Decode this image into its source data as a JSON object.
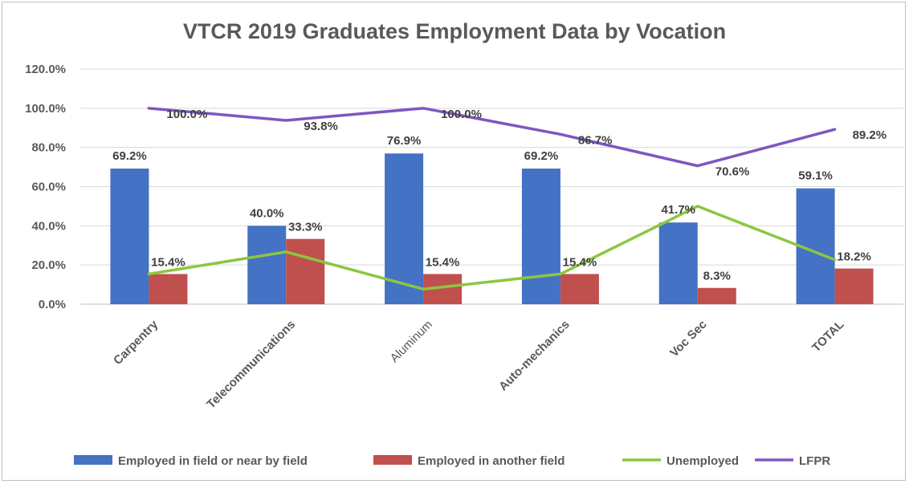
{
  "chart_data": {
    "type": "bar",
    "title": "VTCR 2019 Graduates Employment Data by Vocation",
    "categories": [
      "Carpentry",
      "Telecommunications",
      "Aluminum",
      "Auto-mechanics",
      "Voc Sec",
      "TOTAL"
    ],
    "ylim": [
      0,
      120
    ],
    "yticks": [
      "0.0%",
      "20.0%",
      "40.0%",
      "60.0%",
      "80.0%",
      "100.0%",
      "120.0%"
    ],
    "ytick_values": [
      0,
      20,
      40,
      60,
      80,
      100,
      120
    ],
    "grid": true,
    "legend_position": "bottom",
    "series": [
      {
        "name": "Employed in field or near by field",
        "kind": "bar",
        "color": "#4472c4",
        "values": [
          69.2,
          40.0,
          76.9,
          69.2,
          41.7,
          59.1
        ],
        "labels": [
          "69.2%",
          "40.0%",
          "76.9%",
          "69.2%",
          "41.7%",
          "59.1%"
        ]
      },
      {
        "name": "Employed in another field",
        "kind": "bar",
        "color": "#c0504d",
        "values": [
          15.4,
          33.3,
          15.4,
          15.4,
          8.3,
          18.2
        ],
        "labels": [
          "15.4%",
          "33.3%",
          "15.4%",
          "15.4%",
          "8.3%",
          "18.2%"
        ]
      },
      {
        "name": "Unemployed",
        "kind": "line",
        "color": "#8dc63f",
        "values": [
          15.4,
          26.7,
          7.7,
          15.4,
          50.0,
          22.7
        ],
        "labels": []
      },
      {
        "name": "LFPR",
        "kind": "line",
        "color": "#7e57c2",
        "values": [
          100.0,
          93.8,
          100.0,
          86.7,
          70.6,
          89.2
        ],
        "labels": [
          "100.0%",
          "93.8%",
          "100.0%",
          "86.7%",
          "70.6%",
          "89.2%"
        ]
      }
    ]
  }
}
